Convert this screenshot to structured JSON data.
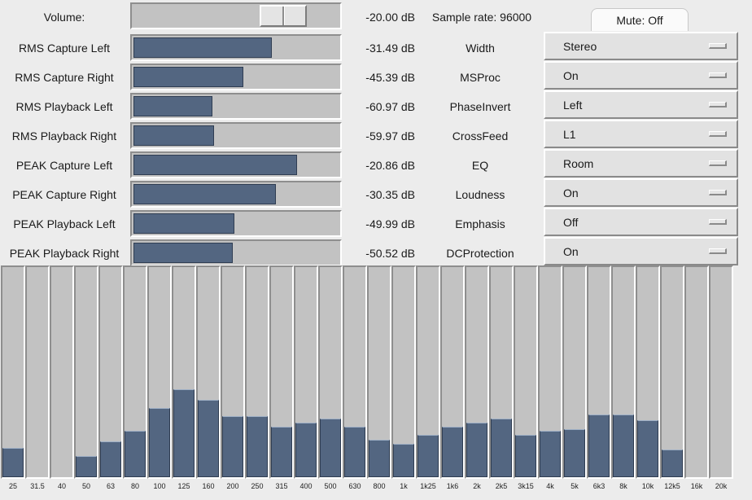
{
  "volume": {
    "label": "Volume:",
    "value": "-20.00 dB",
    "level": 0.62
  },
  "sample_rate": "Sample rate: 96000",
  "mute": {
    "label": "Mute: Off"
  },
  "meters": [
    {
      "label": "RMS Capture Left",
      "value": "-31.49 dB",
      "level": 0.67
    },
    {
      "label": "RMS Capture Right",
      "value": "-45.39 dB",
      "level": 0.53
    },
    {
      "label": "RMS Playback Left",
      "value": "-60.97 dB",
      "level": 0.38
    },
    {
      "label": "RMS Playback Right",
      "value": "-59.97 dB",
      "level": 0.39
    },
    {
      "label": "PEAK Capture Left",
      "value": "-20.86 dB",
      "level": 0.79
    },
    {
      "label": "PEAK Capture Right",
      "value": "-30.35 dB",
      "level": 0.69
    },
    {
      "label": "PEAK Playback Left",
      "value": "-49.99 dB",
      "level": 0.49
    },
    {
      "label": "PEAK Playback Right",
      "value": "-50.52 dB",
      "level": 0.48
    }
  ],
  "options": [
    {
      "label": "Width",
      "value": "Stereo"
    },
    {
      "label": "MSProc",
      "value": "On"
    },
    {
      "label": "PhaseInvert",
      "value": "Left"
    },
    {
      "label": "CrossFeed",
      "value": "L1"
    },
    {
      "label": "EQ",
      "value": "Room"
    },
    {
      "label": "Loudness",
      "value": "On"
    },
    {
      "label": "Emphasis",
      "value": "Off"
    },
    {
      "label": "DCProtection",
      "value": "On"
    }
  ],
  "eq_bands": [
    {
      "label": "25",
      "level": 0.14
    },
    {
      "label": "31.5",
      "level": 0.0
    },
    {
      "label": "40",
      "level": 0.0
    },
    {
      "label": "50",
      "level": 0.1
    },
    {
      "label": "63",
      "level": 0.17
    },
    {
      "label": "80",
      "level": 0.22
    },
    {
      "label": "100",
      "level": 0.33
    },
    {
      "label": "125",
      "level": 0.42
    },
    {
      "label": "160",
      "level": 0.37
    },
    {
      "label": "200",
      "level": 0.29
    },
    {
      "label": "250",
      "level": 0.29
    },
    {
      "label": "315",
      "level": 0.24
    },
    {
      "label": "400",
      "level": 0.26
    },
    {
      "label": "500",
      "level": 0.28
    },
    {
      "label": "630",
      "level": 0.24
    },
    {
      "label": "800",
      "level": 0.18
    },
    {
      "label": "1k",
      "level": 0.16
    },
    {
      "label": "1k25",
      "level": 0.2
    },
    {
      "label": "1k6",
      "level": 0.24
    },
    {
      "label": "2k",
      "level": 0.26
    },
    {
      "label": "2k5",
      "level": 0.28
    },
    {
      "label": "3k15",
      "level": 0.2
    },
    {
      "label": "4k",
      "level": 0.22
    },
    {
      "label": "5k",
      "level": 0.23
    },
    {
      "label": "6k3",
      "level": 0.3
    },
    {
      "label": "8k",
      "level": 0.3
    },
    {
      "label": "10k",
      "level": 0.27
    },
    {
      "label": "12k5",
      "level": 0.13
    },
    {
      "label": "16k",
      "level": 0.0
    },
    {
      "label": "20k",
      "level": 0.0
    }
  ]
}
